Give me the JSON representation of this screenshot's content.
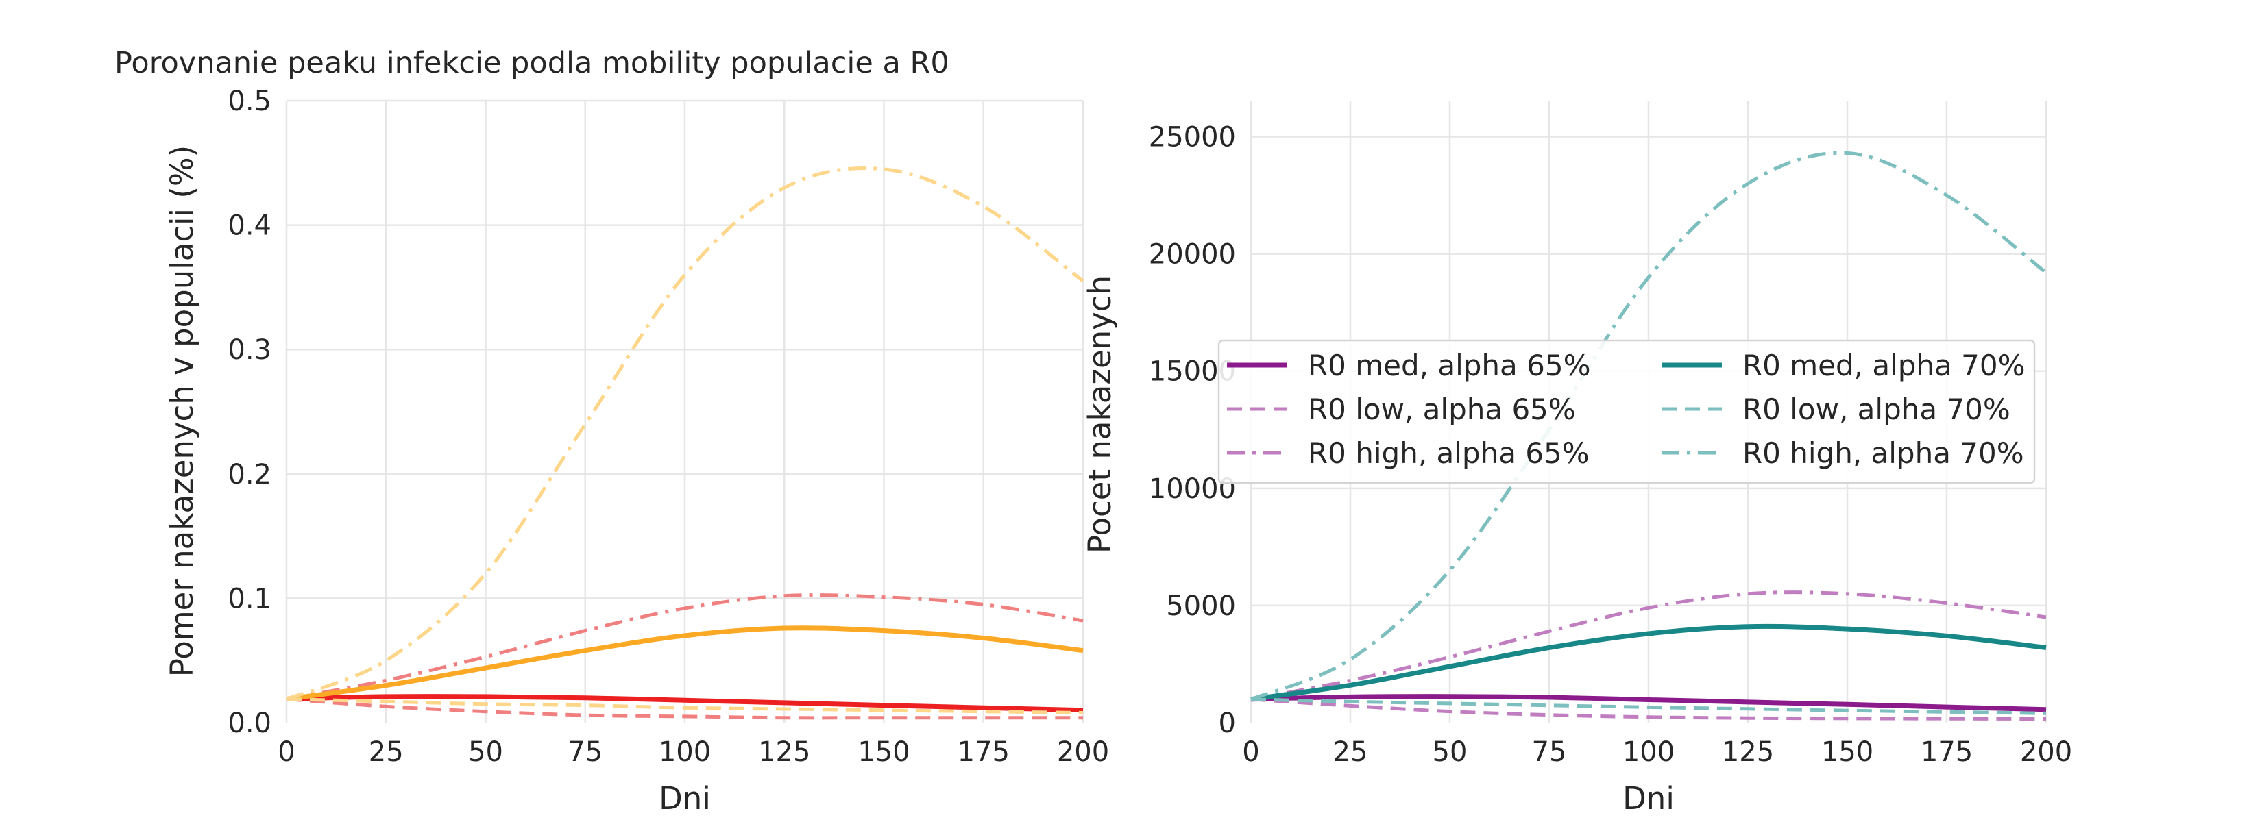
{
  "chart_data": [
    {
      "type": "line",
      "title": "Porovnanie peaku infekcie podla mobility populacie a R0",
      "xlabel": "Dni",
      "ylabel": "Pomer nakazenych v populacii (%)",
      "xlim": [
        0,
        200
      ],
      "ylim": [
        0,
        0.5
      ],
      "xticks": [
        "0",
        "25",
        "50",
        "75",
        "100",
        "125",
        "150",
        "175",
        "200"
      ],
      "yticks": [
        "0.0",
        "0.1",
        "0.2",
        "0.3",
        "0.4",
        "0.5"
      ],
      "grid": true,
      "legend": "none",
      "x": [
        0,
        25,
        50,
        75,
        100,
        125,
        150,
        175,
        200
      ],
      "series": [
        {
          "color": "#ec2020",
          "style": "solid",
          "values": [
            0.019,
            0.021,
            0.021,
            0.02,
            0.018,
            0.016,
            0.014,
            0.012,
            0.01
          ]
        },
        {
          "color": "#f08080",
          "style": "dashed",
          "values": [
            0.019,
            0.013,
            0.009,
            0.006,
            0.005,
            0.004,
            0.004,
            0.004,
            0.004
          ]
        },
        {
          "color": "#f08080",
          "style": "dashdot",
          "values": [
            0.019,
            0.034,
            0.053,
            0.074,
            0.092,
            0.102,
            0.101,
            0.095,
            0.082
          ]
        },
        {
          "color": "#fba924",
          "style": "solid",
          "values": [
            0.019,
            0.03,
            0.044,
            0.058,
            0.07,
            0.076,
            0.074,
            0.068,
            0.058
          ]
        },
        {
          "color": "#fdd68a",
          "style": "dashed",
          "values": [
            0.019,
            0.017,
            0.015,
            0.014,
            0.012,
            0.011,
            0.01,
            0.009,
            0.008
          ]
        },
        {
          "color": "#fdd68a",
          "style": "dashdot",
          "values": [
            0.019,
            0.05,
            0.12,
            0.24,
            0.36,
            0.43,
            0.445,
            0.415,
            0.355
          ]
        }
      ]
    },
    {
      "type": "line",
      "title": "",
      "xlabel": "Dni",
      "ylabel": "Pocet nakazenych",
      "xlim": [
        0,
        200
      ],
      "ylim": [
        0,
        27500
      ],
      "xticks": [
        "0",
        "25",
        "50",
        "75",
        "100",
        "125",
        "150",
        "175",
        "200"
      ],
      "yticks": [
        "0",
        "5000",
        "10000",
        "15000",
        "20000",
        "25000"
      ],
      "grid": true,
      "legend": "center, two columns",
      "x": [
        0,
        25,
        50,
        75,
        100,
        125,
        150,
        175,
        200
      ],
      "series": [
        {
          "name": "R0 med, alpha 65%",
          "color": "#8b1a8b",
          "style": "solid",
          "values": [
            1000,
            1100,
            1120,
            1080,
            980,
            880,
            780,
            670,
            560
          ]
        },
        {
          "name": "R0 low, alpha 65%",
          "color": "#c07ec0",
          "style": "dashed",
          "values": [
            1000,
            720,
            480,
            330,
            240,
            200,
            180,
            170,
            160
          ]
        },
        {
          "name": "R0 high, alpha 65%",
          "color": "#c07ec0",
          "style": "dashdot",
          "values": [
            1000,
            1800,
            2800,
            3900,
            4900,
            5500,
            5500,
            5100,
            4500
          ]
        },
        {
          "name": "R0 med, alpha 70%",
          "color": "#178787",
          "style": "solid",
          "values": [
            1000,
            1600,
            2400,
            3200,
            3800,
            4100,
            4000,
            3700,
            3200
          ]
        },
        {
          "name": "R0 low, alpha 70%",
          "color": "#7dbebe",
          "style": "dashed",
          "values": [
            1000,
            900,
            820,
            740,
            660,
            590,
            520,
            460,
            400
          ]
        },
        {
          "name": "R0 high, alpha 70%",
          "color": "#7dbebe",
          "style": "dashdot",
          "values": [
            1000,
            2700,
            6500,
            12500,
            19000,
            23000,
            24300,
            22500,
            19200
          ]
        }
      ]
    }
  ]
}
